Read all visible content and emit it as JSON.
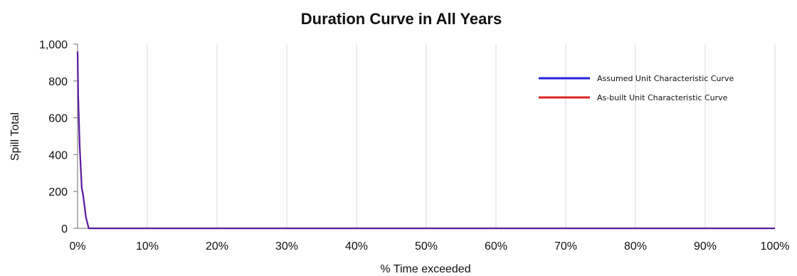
{
  "chart_data": {
    "type": "line",
    "title": "Duration Curve in All Years",
    "xlabel": "% Time exceeded",
    "ylabel": "Spill Total",
    "xlim": [
      0,
      100
    ],
    "ylim": [
      0,
      1000
    ],
    "x_ticks": [
      0,
      10,
      20,
      30,
      40,
      50,
      60,
      70,
      80,
      90,
      100
    ],
    "x_tick_labels": [
      "0%",
      "10%",
      "20%",
      "30%",
      "40%",
      "50%",
      "60%",
      "70%",
      "80%",
      "90%",
      "100%"
    ],
    "y_ticks": [
      0,
      200,
      400,
      600,
      800,
      1000
    ],
    "y_tick_labels": [
      "0",
      "200",
      "400",
      "600",
      "800",
      "1,000"
    ],
    "grid": "vertical",
    "legend_position": "top-right",
    "series": [
      {
        "name": "Assumed Unit Characteristic Curve",
        "color": "#2222dd",
        "x": [
          0,
          0.1,
          0.3,
          0.6,
          0.8,
          1.2,
          1.6,
          100
        ],
        "y": [
          960,
          700,
          450,
          220,
          180,
          60,
          0,
          0
        ]
      },
      {
        "name": "As-built Unit Characteristic Curve",
        "color": "#dd2222",
        "x": [
          0,
          0.1,
          0.3,
          0.6,
          0.8,
          1.2,
          1.6,
          100
        ],
        "y": [
          960,
          700,
          450,
          220,
          180,
          60,
          0,
          0
        ]
      }
    ]
  }
}
